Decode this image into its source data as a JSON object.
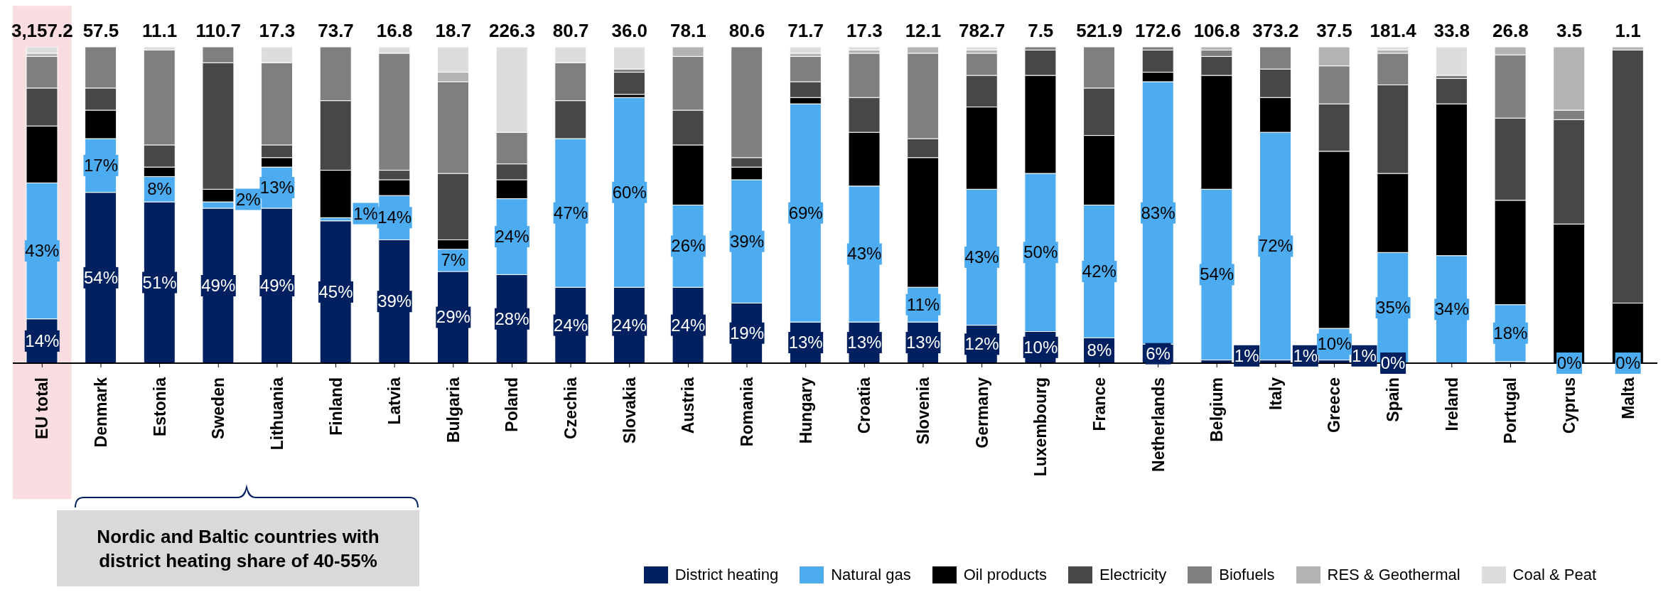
{
  "chart_data": {
    "type": "bar",
    "stacked": true,
    "ylim": [
      0,
      100
    ],
    "categories": [
      "EU total",
      "Denmark",
      "Estonia",
      "Sweden",
      "Lithuania",
      "Finland",
      "Latvia",
      "Bulgaria",
      "Poland",
      "Czechia",
      "Slovakia",
      "Austria",
      "Romania",
      "Hungary",
      "Croatia",
      "Slovenia",
      "Germany",
      "Luxembourg",
      "France",
      "Netherlands",
      "Belgium",
      "Italy",
      "Greece",
      "Spain",
      "Ireland",
      "Portugal",
      "Cyprus",
      "Malta"
    ],
    "series": [
      {
        "name": "District heating",
        "color": "#002060",
        "values": [
          14,
          54,
          51,
          49,
          49,
          45,
          39,
          29,
          28,
          24,
          24,
          24,
          19,
          13,
          13,
          13,
          12,
          10,
          8,
          6,
          1,
          1,
          1,
          0,
          0,
          0.5,
          0,
          0
        ],
        "value_labels": [
          "14%",
          "54%",
          "51%",
          "49%",
          "49%",
          "45%",
          "39%",
          "29%",
          "28%",
          "24%",
          "24%",
          "24%",
          "19%",
          "13%",
          "13%",
          "13%",
          "12%",
          "10%",
          "8%",
          "6%",
          "1%",
          "1%",
          "1%",
          "0%",
          null,
          null,
          null,
          null
        ]
      },
      {
        "name": "Natural gas",
        "color": "#4dabf0",
        "values": [
          43,
          17,
          8,
          2,
          13,
          1,
          14,
          7,
          24,
          47,
          60,
          26,
          39,
          69,
          43,
          11,
          43,
          50,
          42,
          83,
          54,
          72,
          10,
          35,
          34,
          18,
          0,
          0
        ],
        "value_labels": [
          "43%",
          "17%",
          "8%",
          "2%",
          "13%",
          "1%",
          "14%",
          "7%",
          "24%",
          "47%",
          "60%",
          "26%",
          "39%",
          "69%",
          "43%",
          "11%",
          "43%",
          "50%",
          "42%",
          "83%",
          "54%",
          "72%",
          "10%",
          "35%",
          "34%",
          "18%",
          "0%",
          "0%"
        ]
      },
      {
        "name": "Oil products",
        "color": "#000000",
        "values": [
          18,
          9,
          3,
          4,
          3,
          15,
          5,
          3,
          6,
          0,
          1,
          19,
          4,
          2,
          17,
          41,
          26,
          31,
          22,
          3,
          36,
          11,
          56,
          25,
          48,
          33,
          44,
          19
        ]
      },
      {
        "name": "Electricity",
        "color": "#474747",
        "values": [
          12,
          7,
          7,
          40,
          4,
          22,
          3,
          21,
          5,
          12,
          7,
          11,
          3,
          5,
          11,
          6,
          10,
          8,
          15,
          7,
          6,
          9,
          15,
          28,
          8,
          26,
          33,
          80
        ]
      },
      {
        "name": "Biofuels",
        "color": "#7f7f7f",
        "values": [
          10,
          13,
          30,
          5,
          26,
          17,
          37,
          29,
          10,
          12,
          1,
          17,
          35,
          8,
          14,
          27,
          7,
          1,
          13,
          1,
          2,
          7,
          12,
          10,
          1,
          20,
          3,
          0
        ]
      },
      {
        "name": "RES & Geothermal",
        "color": "#b3b3b3",
        "values": [
          1,
          0,
          0,
          0,
          0,
          0,
          0,
          3,
          0,
          0,
          0,
          3,
          0,
          1,
          1,
          2,
          1,
          0,
          0,
          0,
          1,
          0,
          6,
          1,
          0,
          2.5,
          20,
          1
        ]
      },
      {
        "name": "Coal & Peat",
        "color": "#dddddd",
        "values": [
          2,
          0,
          1,
          0,
          5,
          0,
          2,
          8,
          27,
          5,
          7,
          0,
          0,
          2,
          1,
          0,
          1,
          0,
          0,
          0,
          0,
          0,
          0,
          1,
          9,
          0,
          0,
          0
        ]
      }
    ],
    "bands": [
      {
        "axis": "x",
        "from": "EU total",
        "to": "EU total",
        "color": "#f9dde0"
      }
    ],
    "annotations": [
      {
        "text": "3,157.2",
        "x": "EU total",
        "y": 100
      },
      {
        "text": "57.5",
        "x": "Denmark",
        "y": 100
      },
      {
        "text": "11.1",
        "x": "Estonia",
        "y": 100
      },
      {
        "text": "110.7",
        "x": "Sweden",
        "y": 100
      },
      {
        "text": "17.3",
        "x": "Lithuania",
        "y": 100
      },
      {
        "text": "73.7",
        "x": "Finland",
        "y": 100
      },
      {
        "text": "16.8",
        "x": "Latvia",
        "y": 100
      },
      {
        "text": "18.7",
        "x": "Bulgaria",
        "y": 100
      },
      {
        "text": "226.3",
        "x": "Poland",
        "y": 100
      },
      {
        "text": "80.7",
        "x": "Czechia",
        "y": 100
      },
      {
        "text": "36.0",
        "x": "Slovakia",
        "y": 100
      },
      {
        "text": "78.1",
        "x": "Austria",
        "y": 100
      },
      {
        "text": "80.6",
        "x": "Romania",
        "y": 100
      },
      {
        "text": "71.7",
        "x": "Hungary",
        "y": 100
      },
      {
        "text": "17.3",
        "x": "Croatia",
        "y": 100
      },
      {
        "text": "12.1",
        "x": "Slovenia",
        "y": 100
      },
      {
        "text": "782.7",
        "x": "Germany",
        "y": 100
      },
      {
        "text": "7.5",
        "x": "Luxembourg",
        "y": 100
      },
      {
        "text": "521.9",
        "x": "France",
        "y": 100
      },
      {
        "text": "172.6",
        "x": "Netherlands",
        "y": 100
      },
      {
        "text": "106.8",
        "x": "Belgium",
        "y": 100
      },
      {
        "text": "373.2",
        "x": "Italy",
        "y": 100
      },
      {
        "text": "37.5",
        "x": "Greece",
        "y": 100
      },
      {
        "text": "181.4",
        "x": "Spain",
        "y": 100
      },
      {
        "text": "33.8",
        "x": "Ireland",
        "y": 100
      },
      {
        "text": "26.8",
        "x": "Portugal",
        "y": 100
      },
      {
        "text": "3.5",
        "x": "Cyprus",
        "y": 100
      },
      {
        "text": "1.1",
        "x": "Malta",
        "y": 100
      },
      "Nordic and Baltic countries with district heating share of 40-55%"
    ],
    "legend": "bottom right"
  }
}
